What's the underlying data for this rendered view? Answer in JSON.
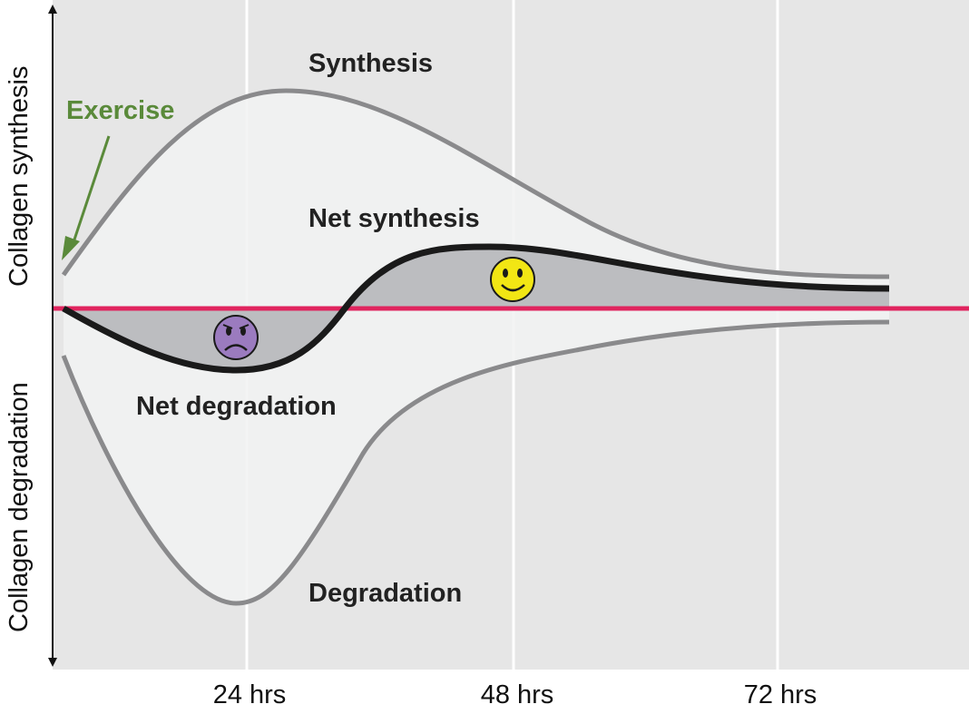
{
  "axes": {
    "y_upper": "Collagen synthesis",
    "y_lower": "Collagen degradation"
  },
  "x_ticks": [
    "24 hrs",
    "48 hrs",
    "72 hrs"
  ],
  "labels": {
    "synthesis": "Synthesis",
    "net_synthesis": "Net synthesis",
    "net_degradation": "Net degradation",
    "degradation": "Degradation",
    "exercise": "Exercise"
  },
  "icons": {
    "happy": "happy-face-icon",
    "sad": "sad-face-icon"
  },
  "colors": {
    "background": "#e6e6e6",
    "envelope_fill": "#f1f2f2",
    "net_fill": "#bcbdc0",
    "baseline": "#e0245e",
    "exercise": "#5a8a3a",
    "curve_gray": "#8a8a8c",
    "net_curve": "#1a1a1a",
    "happy_face": "#f2e614",
    "sad_face": "#9b7bbf"
  }
}
